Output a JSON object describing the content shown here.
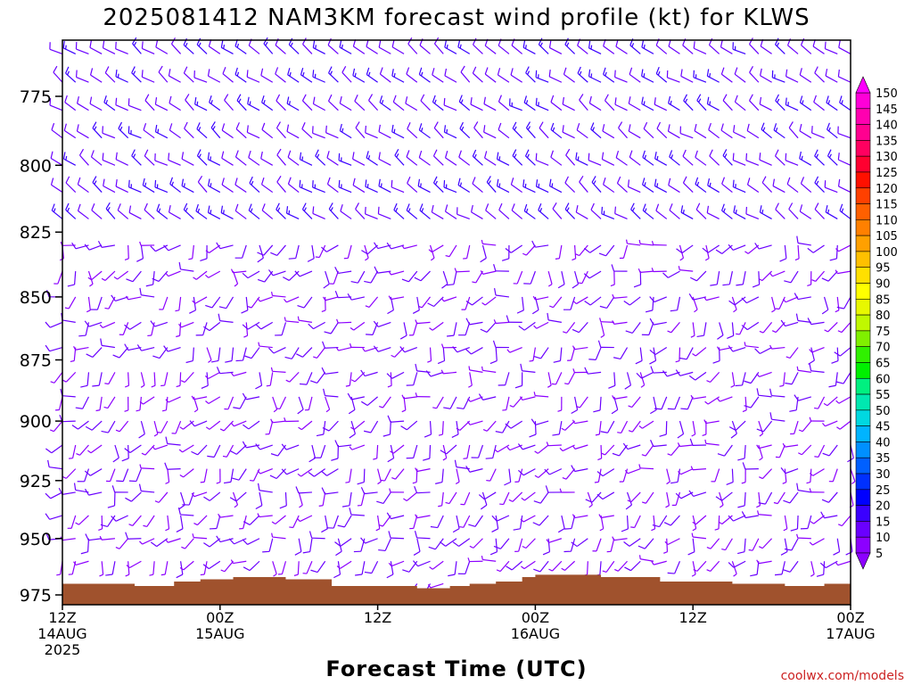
{
  "chart_data": {
    "type": "wind-barb-time-height",
    "title": "2025081412 NAM3KM forecast wind profile (kt) for KLWS",
    "xlabel": "Forecast Time (UTC)",
    "credit": "coolwx.com/models",
    "ylim": [
      975,
      755
    ],
    "y_ticks": [
      775,
      800,
      825,
      850,
      875,
      900,
      925,
      950,
      975
    ],
    "x_range_hours": [
      0,
      60
    ],
    "x_ticks": [
      {
        "hour": 0,
        "line1": "12Z",
        "line2": "14AUG",
        "line3": "2025"
      },
      {
        "hour": 12,
        "line1": "00Z",
        "line2": "15AUG",
        "line3": ""
      },
      {
        "hour": 24,
        "line1": "12Z",
        "line2": "",
        "line3": ""
      },
      {
        "hour": 36,
        "line1": "00Z",
        "line2": "16AUG",
        "line3": ""
      },
      {
        "hour": 48,
        "line1": "12Z",
        "line2": "",
        "line3": ""
      },
      {
        "hour": 60,
        "line1": "00Z",
        "line2": "17AUG",
        "line3": ""
      }
    ],
    "colorbar": {
      "values": [
        5,
        10,
        15,
        20,
        25,
        30,
        35,
        40,
        45,
        50,
        55,
        60,
        65,
        70,
        75,
        80,
        85,
        90,
        95,
        100,
        105,
        110,
        115,
        120,
        125,
        130,
        135,
        140,
        145,
        150
      ],
      "colors": [
        "#8c00ff",
        "#6a00ff",
        "#3a00ff",
        "#0000ff",
        "#0030ff",
        "#0060ff",
        "#0090ff",
        "#00b4ff",
        "#00d8e0",
        "#00e8b0",
        "#00f080",
        "#00f000",
        "#30f000",
        "#80f000",
        "#c0f800",
        "#e8f800",
        "#ffff00",
        "#ffe000",
        "#ffc000",
        "#ffa000",
        "#ff8000",
        "#ff6000",
        "#ff4000",
        "#ff1000",
        "#ff0030",
        "#ff0060",
        "#ff0090",
        "#ff00b0",
        "#ff00d8",
        "#ff00ff"
      ]
    },
    "terrain_color": "#a0522d",
    "terrain": [
      {
        "hour": 0,
        "pressure": 970
      },
      {
        "hour": 5.5,
        "pressure": 971
      },
      {
        "hour": 8.5,
        "pressure": 969
      },
      {
        "hour": 10.5,
        "pressure": 968
      },
      {
        "hour": 13,
        "pressure": 967
      },
      {
        "hour": 17,
        "pressure": 968
      },
      {
        "hour": 20.5,
        "pressure": 971
      },
      {
        "hour": 27,
        "pressure": 972
      },
      {
        "hour": 29.5,
        "pressure": 971
      },
      {
        "hour": 31,
        "pressure": 970
      },
      {
        "hour": 33,
        "pressure": 969
      },
      {
        "hour": 35,
        "pressure": 967
      },
      {
        "hour": 36,
        "pressure": 966
      },
      {
        "hour": 41,
        "pressure": 967
      },
      {
        "hour": 45.5,
        "pressure": 969
      },
      {
        "hour": 51,
        "pressure": 970
      },
      {
        "hour": 55,
        "pressure": 971
      },
      {
        "hour": 58,
        "pressure": 970
      }
    ],
    "wind_field": {
      "time_step_hours": 1,
      "pressure_levels": [
        760,
        770,
        780,
        790,
        800,
        810,
        820,
        830,
        840,
        850,
        860,
        870,
        880,
        890,
        900,
        910,
        920,
        930,
        940,
        950,
        960,
        970,
        975
      ],
      "note": "barbs mostly 5-20 kt, westerly to northwesterly aloft, variable/southerly low levels"
    }
  }
}
